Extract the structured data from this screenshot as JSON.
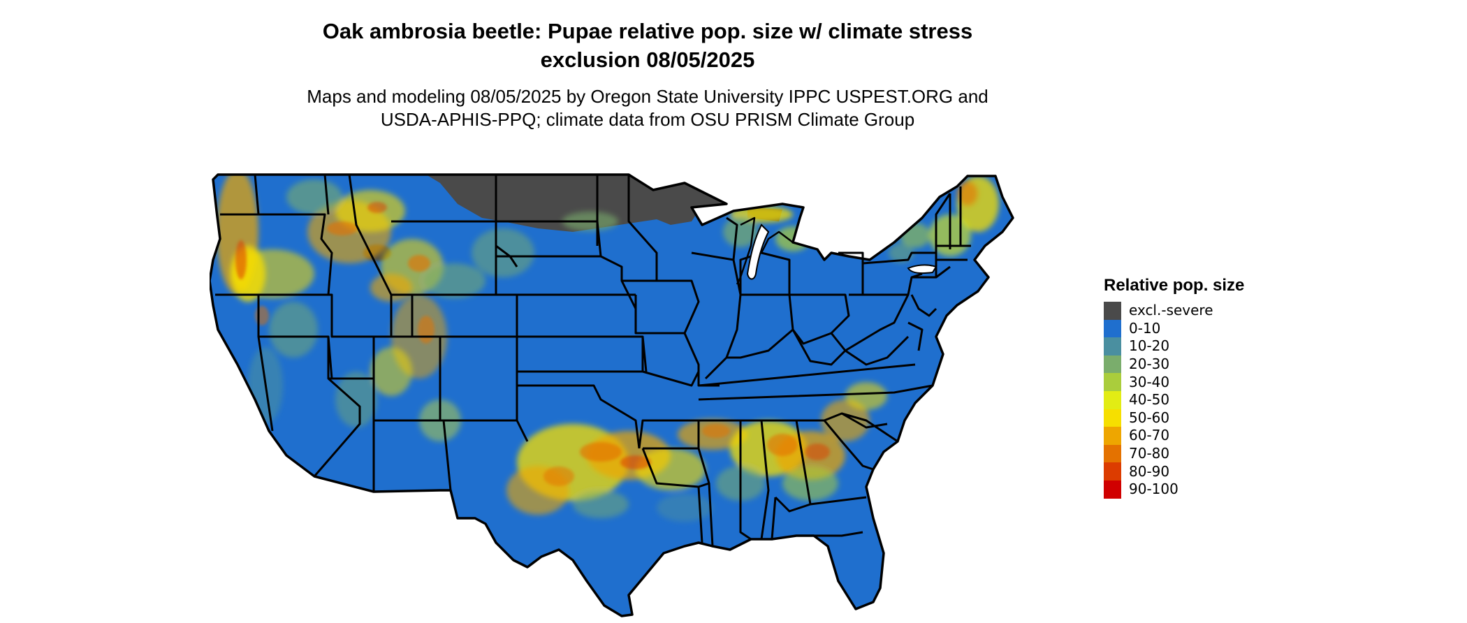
{
  "title": {
    "line1": "Oak ambrosia beetle: Pupae relative pop. size w/ climate stress",
    "line2": "exclusion 08/05/2025"
  },
  "subtitle": {
    "line1": "Maps and modeling 08/05/2025 by Oregon State University IPPC USPEST.ORG and",
    "line2": "USDA-APHIS-PPQ; climate data from OSU PRISM Climate Group"
  },
  "legend": {
    "title": "Relative pop. size",
    "items": [
      {
        "label": "excl.-severe",
        "color": "#4a4a4a"
      },
      {
        "label": "0-10",
        "color": "#1f6fce"
      },
      {
        "label": "10-20",
        "color": "#4a8fa0"
      },
      {
        "label": "20-30",
        "color": "#7aad6c"
      },
      {
        "label": "30-40",
        "color": "#aacd3c"
      },
      {
        "label": "40-50",
        "color": "#e2ec14"
      },
      {
        "label": "50-60",
        "color": "#f6df00"
      },
      {
        "label": "60-70",
        "color": "#eea600"
      },
      {
        "label": "70-80",
        "color": "#e47200"
      },
      {
        "label": "80-90",
        "color": "#dc3c00"
      },
      {
        "label": "90-100",
        "color": "#d00000"
      }
    ]
  },
  "map": {
    "region": "Contiguous United States",
    "base_color": "#1f6fce",
    "state_border_color": "#000000"
  }
}
